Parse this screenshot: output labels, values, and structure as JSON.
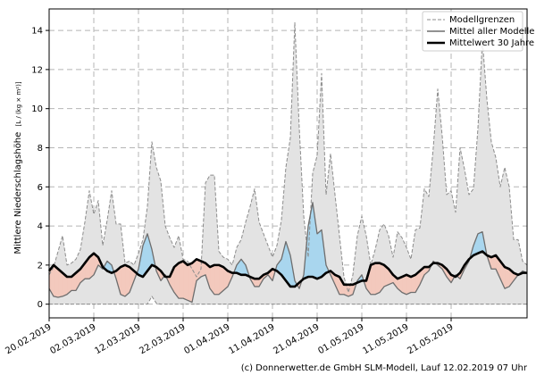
{
  "chart_data": {
    "type": "area",
    "ylabel_prefix": "Mittlere Niederschlagshöhe",
    "ylabel_unit": "[L / (kg × m²)]",
    "ylim": [
      -0.7,
      15.1
    ],
    "yticks": [
      0,
      2,
      4,
      6,
      8,
      10,
      12,
      14
    ],
    "xticks": [
      "20.02.2019",
      "02.03.2019",
      "12.03.2019",
      "22.03.2019",
      "01.04.2019",
      "11.04.2019",
      "21.04.2019",
      "01.05.2019",
      "11.05.2019",
      "21.05.2019"
    ],
    "x_start": "2019-02-20",
    "grid": true,
    "legend_position": "top-right",
    "legend": [
      "Modellgrenzen",
      "Mittel aller Modelle",
      "Mittelwert 30 Jahre"
    ],
    "colors": {
      "envelope_fill": "#e3e3e3",
      "envelope_line": "#8c8c8c",
      "mean_line": "#6e6e6e",
      "clim_line": "#000000",
      "above_fill": "#a9d6ee",
      "below_fill": "#f3c9bd"
    },
    "upper": [
      1.5,
      1.9,
      2.7,
      3.5,
      2.0,
      2.1,
      2.3,
      2.8,
      4.2,
      5.8,
      4.6,
      5.3,
      3.0,
      4.3,
      5.8,
      4.1,
      4.1,
      2.1,
      2.2,
      2.0,
      2.6,
      3.3,
      5.0,
      8.3,
      7.0,
      6.3,
      4.0,
      3.4,
      2.9,
      3.5,
      2.3,
      2.2,
      1.8,
      1.4,
      1.8,
      6.2,
      6.6,
      6.6,
      2.7,
      2.4,
      2.3,
      2.0,
      2.9,
      3.3,
      4.2,
      5.0,
      5.9,
      4.2,
      3.6,
      3.0,
      2.4,
      3.0,
      4.3,
      7.0,
      8.5,
      14.4,
      9.0,
      4.5,
      2.4,
      6.7,
      7.6,
      11.8,
      5.6,
      7.7,
      5.6,
      3.5,
      1.4,
      0.6,
      1.5,
      3.5,
      4.5,
      3.5,
      2.0,
      2.8,
      3.8,
      4.1,
      3.5,
      2.4,
      3.7,
      3.4,
      2.9,
      2.3,
      3.8,
      3.9,
      5.9,
      5.5,
      8.0,
      11.0,
      8.6,
      5.6,
      5.8,
      4.7,
      8.0,
      6.9,
      5.6,
      5.9,
      9.0,
      13.5,
      10.5,
      8.3,
      7.5,
      6.0,
      7.0,
      6.0,
      3.3,
      3.3,
      2.2,
      2.0
    ],
    "lower": [
      0,
      0,
      0,
      0,
      0,
      0,
      0,
      0,
      0,
      0,
      0,
      0,
      0,
      0,
      0,
      0,
      0,
      0,
      0,
      0,
      0,
      0,
      0,
      0.4,
      0.05,
      0,
      0,
      0,
      0,
      0,
      0,
      0,
      0,
      0,
      0,
      0,
      0,
      0,
      0,
      0,
      0,
      0,
      0,
      0,
      0,
      0,
      0,
      0,
      0,
      0,
      0,
      0,
      0,
      0,
      0,
      0,
      0,
      0,
      0,
      0,
      0,
      0,
      0,
      0,
      0,
      0,
      0,
      0,
      0,
      0,
      0,
      0,
      0,
      0,
      0,
      0,
      0,
      0,
      0,
      0,
      0,
      0,
      0,
      0,
      0,
      0,
      0,
      0,
      0,
      0,
      0,
      0,
      0,
      0,
      0,
      0,
      0,
      0,
      0,
      0,
      0,
      0,
      0,
      0,
      0,
      0,
      0,
      0
    ],
    "mean": [
      0.8,
      0.4,
      0.35,
      0.4,
      0.5,
      0.7,
      0.7,
      1.1,
      1.3,
      1.3,
      1.5,
      2.0,
      1.8,
      2.2,
      2.0,
      1.3,
      0.5,
      0.4,
      0.6,
      1.2,
      1.8,
      3.0,
      3.6,
      2.8,
      1.7,
      1.2,
      1.5,
      1.0,
      0.6,
      0.3,
      0.3,
      0.2,
      0.1,
      1.2,
      1.4,
      1.5,
      0.8,
      0.5,
      0.5,
      0.7,
      0.9,
      1.4,
      2.0,
      2.3,
      2.0,
      1.3,
      0.9,
      0.9,
      1.3,
      1.5,
      1.2,
      2.0,
      2.3,
      3.2,
      2.5,
      1.2,
      0.8,
      1.5,
      4.0,
      5.2,
      3.6,
      3.8,
      2.0,
      1.5,
      1.0,
      0.5,
      0.5,
      0.4,
      0.5,
      1.2,
      1.5,
      0.8,
      0.5,
      0.5,
      0.6,
      0.9,
      1.0,
      1.1,
      0.8,
      0.6,
      0.5,
      0.6,
      0.6,
      1.0,
      1.5,
      1.7,
      2.2,
      2.0,
      1.8,
      1.4,
      1.1,
      1.5,
      1.3,
      1.8,
      2.2,
      3.0,
      3.6,
      3.7,
      2.5,
      1.8,
      1.8,
      1.3,
      0.8,
      0.9,
      1.2,
      1.5,
      1.7,
      1.6
    ],
    "clim": [
      1.7,
      2.0,
      1.8,
      1.6,
      1.4,
      1.4,
      1.6,
      1.8,
      2.1,
      2.4,
      2.6,
      2.4,
      1.9,
      1.7,
      1.6,
      1.7,
      1.9,
      2.0,
      1.9,
      1.7,
      1.5,
      1.4,
      1.7,
      2.0,
      1.9,
      1.7,
      1.4,
      1.4,
      1.9,
      2.1,
      2.2,
      2.0,
      2.1,
      2.3,
      2.2,
      2.1,
      1.9,
      2.0,
      2.0,
      1.9,
      1.7,
      1.6,
      1.6,
      1.5,
      1.5,
      1.4,
      1.3,
      1.3,
      1.5,
      1.6,
      1.8,
      1.7,
      1.5,
      1.2,
      0.9,
      0.9,
      1.1,
      1.3,
      1.4,
      1.4,
      1.3,
      1.4,
      1.6,
      1.7,
      1.5,
      1.4,
      1.0,
      1.0,
      1.0,
      1.1,
      1.2,
      1.2,
      2.0,
      2.1,
      2.1,
      2.0,
      1.8,
      1.5,
      1.3,
      1.4,
      1.5,
      1.4,
      1.5,
      1.7,
      1.9,
      1.9,
      2.1,
      2.1,
      2.0,
      1.8,
      1.5,
      1.4,
      1.6,
      2.0,
      2.3,
      2.5,
      2.6,
      2.7,
      2.5,
      2.4,
      2.5,
      2.2,
      1.9,
      1.8,
      1.6,
      1.5,
      1.6,
      1.6
    ]
  },
  "footer": {
    "credit": "(c) Donnerwetter.de GmbH SLM-Modell, Lauf 12.02.2019 07 Uhr"
  }
}
